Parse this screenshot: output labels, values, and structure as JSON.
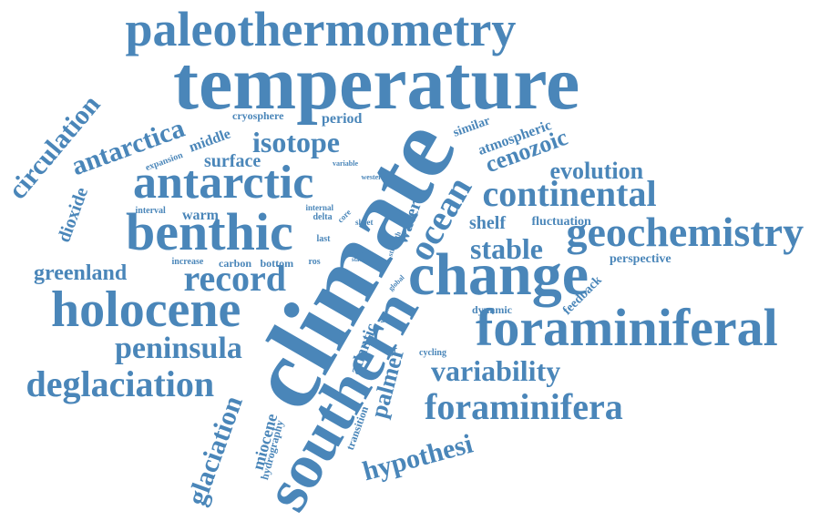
{
  "accent_color": "#4a86b9",
  "background_color": "#ffffff",
  "words": [
    {
      "text": "paleothermometry",
      "rotation": 0
    },
    {
      "text": "temperature",
      "rotation": 0
    },
    {
      "text": "climate",
      "rotation": -60
    },
    {
      "text": "change",
      "rotation": 0
    },
    {
      "text": "southern",
      "rotation": -60
    },
    {
      "text": "foraminiferal",
      "rotation": 0
    },
    {
      "text": "benthic",
      "rotation": 0
    },
    {
      "text": "antarctic",
      "rotation": 0
    },
    {
      "text": "holocene",
      "rotation": 0
    },
    {
      "text": "geochemistry",
      "rotation": 0
    },
    {
      "text": "continental",
      "rotation": 0
    },
    {
      "text": "foraminifera",
      "rotation": 0
    },
    {
      "text": "deglaciation",
      "rotation": 0
    },
    {
      "text": "ocean",
      "rotation": -60
    },
    {
      "text": "record",
      "rotation": 0
    },
    {
      "text": "peninsula",
      "rotation": 0
    },
    {
      "text": "variability",
      "rotation": 0
    },
    {
      "text": "antarctica",
      "rotation": -20
    },
    {
      "text": "isotope",
      "rotation": 0
    },
    {
      "text": "glaciation",
      "rotation": -70
    },
    {
      "text": "hypothesi",
      "rotation": -15
    },
    {
      "text": "circulation",
      "rotation": -50
    },
    {
      "text": "stable",
      "rotation": 0
    },
    {
      "text": "cenozoic",
      "rotation": -20
    },
    {
      "text": "evolution",
      "rotation": 0
    },
    {
      "text": "greenland",
      "rotation": 0
    },
    {
      "text": "palmer",
      "rotation": -75
    },
    {
      "text": "shelf",
      "rotation": 0
    },
    {
      "text": "water",
      "rotation": -70
    },
    {
      "text": "dioxide",
      "rotation": -70
    },
    {
      "text": "surface",
      "rotation": 0
    },
    {
      "text": "atmospheric",
      "rotation": -20
    },
    {
      "text": "atlantic",
      "rotation": -70
    },
    {
      "text": "miocene",
      "rotation": -75
    },
    {
      "text": "period",
      "rotation": 0
    },
    {
      "text": "middle",
      "rotation": -20
    },
    {
      "text": "warm",
      "rotation": 0
    },
    {
      "text": "perspective",
      "rotation": 0
    },
    {
      "text": "fluctuation",
      "rotation": 0
    },
    {
      "text": "similar",
      "rotation": -20
    },
    {
      "text": "feedback",
      "rotation": -45
    },
    {
      "text": "dynamic",
      "rotation": 0
    },
    {
      "text": "transition",
      "rotation": -70
    },
    {
      "text": "hydrography",
      "rotation": -75
    },
    {
      "text": "cryosphere",
      "rotation": 0
    },
    {
      "text": "expansion",
      "rotation": -20
    },
    {
      "text": "carbon",
      "rotation": 0
    },
    {
      "text": "bottom",
      "rotation": 0
    },
    {
      "text": "increase",
      "rotation": 0
    },
    {
      "text": "interval",
      "rotation": 0
    },
    {
      "text": "internal",
      "rotation": 0
    },
    {
      "text": "delta",
      "rotation": 0
    },
    {
      "text": "core",
      "rotation": -45
    },
    {
      "text": "sheet",
      "rotation": 0
    },
    {
      "text": "last",
      "rotation": 0
    },
    {
      "text": "ros",
      "rotation": 0
    },
    {
      "text": "cycling",
      "rotation": 0
    },
    {
      "text": "variable",
      "rotation": 0
    },
    {
      "text": "western",
      "rotation": 0
    },
    {
      "text": "strength",
      "rotation": -70
    },
    {
      "text": "global",
      "rotation": -45
    },
    {
      "text": "volume",
      "rotation": -70
    },
    {
      "text": "cace",
      "rotation": 0
    },
    {
      "text": "state",
      "rotation": 0
    }
  ]
}
